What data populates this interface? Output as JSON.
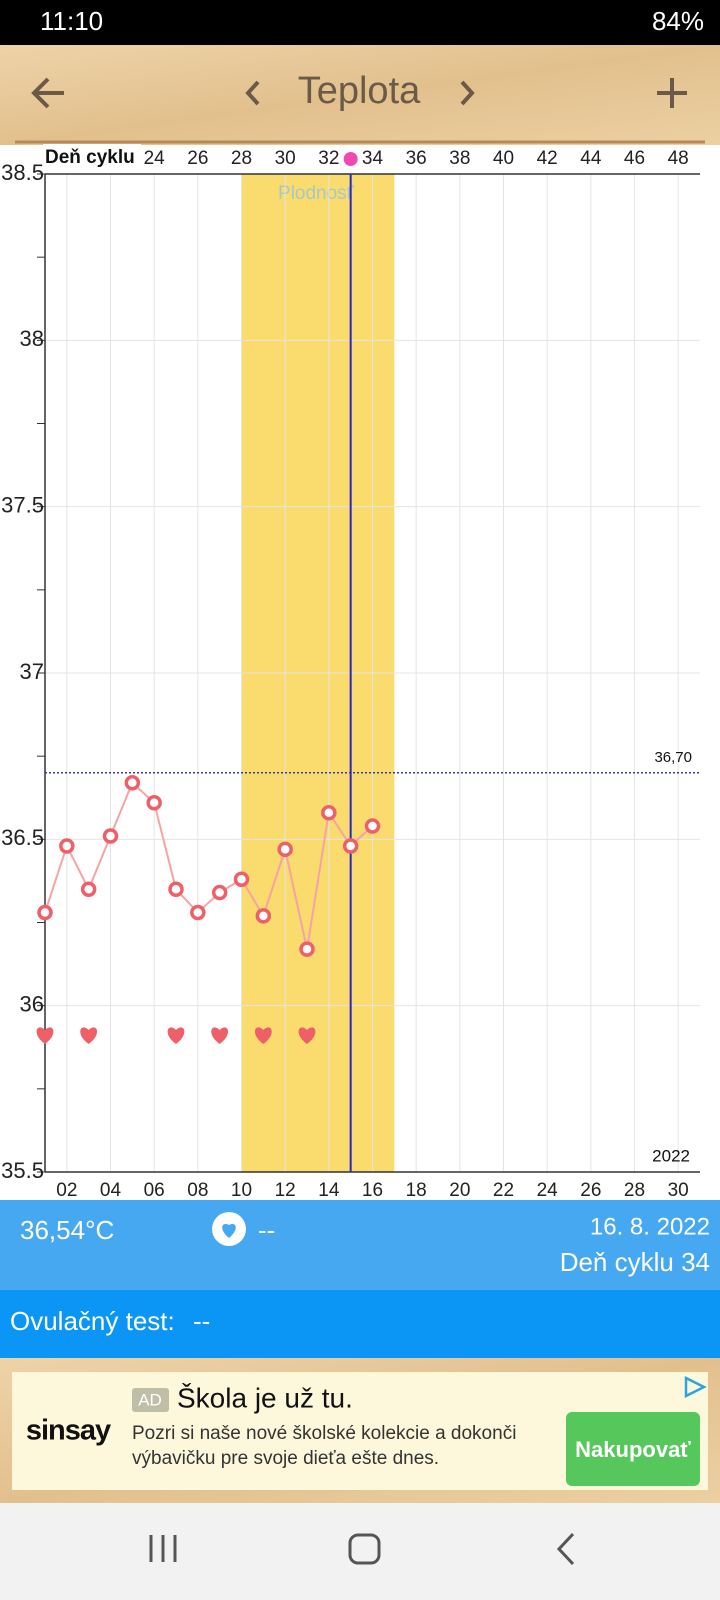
{
  "status_bar": {
    "time": "11:10",
    "battery": "84%"
  },
  "toolbar": {
    "title": "Teplota"
  },
  "chart_data": {
    "type": "line",
    "x2_label": "Deň cyklu",
    "x": [
      1,
      2,
      3,
      4,
      5,
      6,
      7,
      8,
      9,
      10,
      11,
      12,
      13,
      14,
      15,
      16
    ],
    "values": [
      36.28,
      36.48,
      36.35,
      36.51,
      36.67,
      36.61,
      36.35,
      36.28,
      36.34,
      36.38,
      36.27,
      36.47,
      36.17,
      36.58,
      36.48,
      36.54
    ],
    "color": "#ef5f68",
    "line_color": "#f6a3a6",
    "xlim": [
      1,
      31
    ],
    "xticks": [
      {
        "value": 2,
        "label": "02"
      },
      {
        "value": 4,
        "label": "04"
      },
      {
        "value": 6,
        "label": "06"
      },
      {
        "value": 8,
        "label": "08"
      },
      10,
      12,
      14,
      16,
      18,
      20,
      22,
      24,
      26,
      28,
      30
    ],
    "x2lim": [
      19,
      49
    ],
    "x2ticks": [
      24,
      26,
      28,
      30,
      32,
      34,
      36,
      38,
      40,
      42,
      44,
      46,
      48
    ],
    "ylim": [
      35.5,
      38.5
    ],
    "yticks": [
      35.5,
      36,
      36.5,
      37,
      37.5,
      38,
      38.5
    ],
    "y_minor_ticks": [
      35.75,
      36.25,
      36.75,
      37.25,
      37.75,
      38.25
    ],
    "grid": true,
    "fertile_window": {
      "label": "Plodnosť",
      "x": [
        10,
        17
      ],
      "color": "#fadb6e"
    },
    "today_x": 15,
    "today_color": "#2727c8",
    "reference_line": {
      "value": 36.7,
      "label": "36,70"
    },
    "heart_days": [
      1,
      3,
      7,
      9,
      11,
      13
    ],
    "year_label": "2022"
  },
  "info": {
    "temperature": "36,54°C",
    "heart": "--",
    "date": "16. 8. 2022",
    "cycle_day": "Deň cyklu 34",
    "ovulation_label": "Ovulačný test:",
    "ovulation_value": "--"
  },
  "ad": {
    "badge": "AD",
    "title": "Škola je už tu.",
    "text_lines": [
      "Pozri si naše nové školské kolekcie a dokonči",
      "výbavičku pre svoje dieťa ešte dnes."
    ],
    "brand": "sinsay",
    "button": "Nakupovať"
  }
}
